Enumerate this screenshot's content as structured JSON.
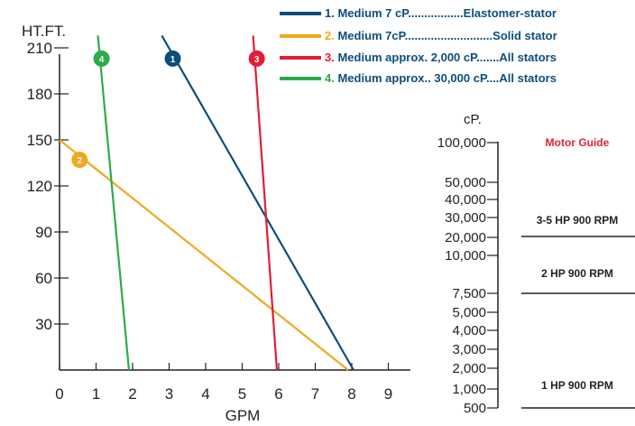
{
  "chart_data": [
    {
      "type": "line",
      "xlabel": "GPM",
      "ylabel": "HT.FT.",
      "xlim": [
        0,
        9
      ],
      "ylim": [
        0,
        210
      ],
      "x_ticks": [
        "0",
        "1",
        "2",
        "3",
        "4",
        "5",
        "6",
        "7",
        "8",
        "9"
      ],
      "y_ticks": [
        "30",
        "60",
        "90",
        "120",
        "150",
        "180",
        "210"
      ],
      "legend": [
        {
          "num": "1.",
          "text": " Medium 7 cP.................Elastomer-stator",
          "color": "#0d4d7c"
        },
        {
          "num": "2.",
          "text": " Medium 7cP...........................Solid stator",
          "color": "#f0a81e"
        },
        {
          "num": "3.",
          "text": " Medium approx. 2,000 cP.......All stators",
          "color": "#e21e35"
        },
        {
          "num": "4.",
          "text": " Medium approx.. 30,000 cP....All stators",
          "color": "#2cab4a"
        }
      ],
      "series": [
        {
          "badge": "1",
          "color": "#0d4d7c",
          "points": [
            [
              2.8,
              218
            ],
            [
              8.05,
              0
            ]
          ],
          "badge_at": [
            3.1,
            203
          ]
        },
        {
          "badge": "2",
          "color": "#f0a81e",
          "points": [
            [
              0,
              150
            ],
            [
              7.9,
              0
            ]
          ],
          "badge_at": [
            0.55,
            137
          ]
        },
        {
          "badge": "3",
          "color": "#e21e35",
          "points": [
            [
              5.3,
              218
            ],
            [
              5.95,
              0
            ]
          ],
          "badge_at": [
            5.4,
            203
          ]
        },
        {
          "badge": "4",
          "color": "#2cab4a",
          "points": [
            [
              1.05,
              218
            ],
            [
              1.9,
              0
            ]
          ],
          "badge_at": [
            1.15,
            203
          ]
        }
      ]
    },
    {
      "type": "table",
      "title": "Motor Guide",
      "title_color": "#e21e35",
      "unit_label": "cP.",
      "ticks": [
        "100,000",
        "50,000",
        "40,000",
        "30,000",
        "20,000",
        "10,000",
        "7,500",
        "5,000",
        "4,000",
        "3,000",
        "2,000",
        "1,000",
        "500"
      ],
      "rows": [
        "3-5 HP 900 RPM",
        "2 HP 900 RPM",
        "1 HP 900 RPM"
      ]
    }
  ]
}
